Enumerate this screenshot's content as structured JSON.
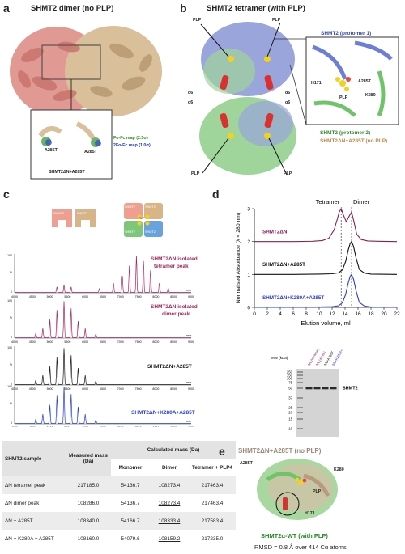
{
  "panels": {
    "a": {
      "letter": "a",
      "title": "SHMT2 dimer (no PLP)",
      "map_green": "Fo-Fc map (2.5σ)",
      "map_blue": "2Fo-Fc map (1.0σ)",
      "residue_left": "A285T",
      "residue_right": "A285T",
      "construct": "SHMT2ΔN+A285T"
    },
    "b": {
      "letter": "b",
      "title": "SHMT2 tetramer (with PLP)",
      "plp_labels": [
        "PLP",
        "PLP",
        "PLP",
        "PLP"
      ],
      "alpha_labels": [
        "α6",
        "α6",
        "α6",
        "α6"
      ],
      "protomer1": "SHMT2 (protomer 1)",
      "protomer2": "SHMT2 (protomer 2)",
      "overlay": "SHMT2ΔN+A285T (no PLP)",
      "inset": {
        "h171": "H171",
        "plp": "PLP",
        "a285t": "A285T",
        "k280": "K280"
      }
    },
    "c": {
      "letter": "c",
      "cartoon_dimer": [
        "SHMT2",
        "SHMT2"
      ],
      "cartoon_tetramer": [
        "SHMT2",
        "SHMT2",
        "SHMT2",
        "SHMT2"
      ],
      "cartoon_plp": "PLP",
      "spectra": [
        {
          "label_line1": "SHMT2ΔN isolated",
          "label_line2": "tetramer peak",
          "color": "#a3285e",
          "type": "tetramer"
        },
        {
          "label_line1": "SHMT2ΔN isolated",
          "label_line2": "dimer peak",
          "color": "#a3285e",
          "type": "dimer"
        },
        {
          "label_line1": "SHMT2ΔN+A285T",
          "label_line2": "",
          "color": "#1a1a1a",
          "type": "dimer"
        },
        {
          "label_line1": "SHMT2ΔN+K280A+A285T",
          "label_line2": "",
          "color": "#2a3fd0",
          "type": "dimer"
        }
      ],
      "x_ticks": [
        "4000",
        "4500",
        "5000",
        "5500",
        "6000",
        "6500",
        "7000",
        "7500",
        "8000",
        "8500",
        "9000"
      ],
      "x_unit": "m/z",
      "y_ticks": [
        "0",
        "%",
        "100"
      ]
    },
    "d": {
      "letter": "d",
      "peak_labels": {
        "tetramer": "Tetramer",
        "dimer": "Dimer"
      },
      "chart_data": {
        "type": "line",
        "xlabel": "Elution volume, ml",
        "ylabel": "Normalised Absorbance (λ = 280 nm)",
        "x_ticks": [
          0,
          2,
          4,
          6,
          8,
          10,
          12,
          14,
          16,
          18,
          20,
          22
        ],
        "y_ticks": [
          0,
          1,
          2,
          3
        ],
        "xlim": [
          0,
          22
        ],
        "ylim": [
          0,
          3
        ],
        "dashed_lines_x": [
          13.4,
          15.0
        ],
        "series": [
          {
            "name": "SHMT2ΔN",
            "color": "#8a2050",
            "offset": 2,
            "x": [
              0,
              6,
              9,
              10.5,
              11.5,
              12.3,
              12.8,
              13.1,
              13.4,
              13.8,
              14.2,
              14.6,
              15.0,
              15.4,
              15.8,
              16.5,
              17.5,
              19,
              22
            ],
            "y": [
              0,
              0,
              0.01,
              0.03,
              0.1,
              0.35,
              0.68,
              0.9,
              1.0,
              0.78,
              0.6,
              0.76,
              0.9,
              0.58,
              0.22,
              0.06,
              0.02,
              0.01,
              0
            ]
          },
          {
            "name": "SHMT2ΔN+A285T",
            "color": "#111111",
            "offset": 1,
            "x": [
              0,
              6,
              10,
              12,
              13,
              13.6,
              14.1,
              14.5,
              14.8,
              15.0,
              15.3,
              15.7,
              16.2,
              17,
              18,
              22
            ],
            "y": [
              0,
              0,
              0.01,
              0.02,
              0.05,
              0.14,
              0.4,
              0.75,
              0.95,
              1.0,
              0.86,
              0.5,
              0.15,
              0.04,
              0.01,
              0
            ]
          },
          {
            "name": "SHMT2ΔN+K280A+A285T",
            "color": "#2a3ad8",
            "offset": 0,
            "x": [
              0,
              6,
              10,
              12,
              13,
              13.6,
              14.1,
              14.5,
              14.8,
              15.0,
              15.3,
              15.7,
              16.2,
              17,
              18,
              22
            ],
            "y": [
              0,
              0,
              0.01,
              0.02,
              0.05,
              0.14,
              0.4,
              0.75,
              0.95,
              1.0,
              0.86,
              0.5,
              0.15,
              0.04,
              0.01,
              0
            ]
          }
        ]
      },
      "gel": {
        "mw_header": "MW (kDa)",
        "markers": [
          "250",
          "150",
          "100",
          "75",
          "50",
          "37",
          "25",
          "20",
          "15",
          "10"
        ],
        "lanes": [
          "ΔN (tetramer)",
          "ΔN (dimer)",
          "ΔN+A285T",
          "ΔN+K280A+A285T"
        ],
        "lane_colors": [
          "#8a2050",
          "#8a2050",
          "#111111",
          "#2a3ad8"
        ],
        "band_label": "SHMT2"
      }
    },
    "e": {
      "letter": "e",
      "title": "SHMT2ΔN+A285T (no PLP)",
      "labels": {
        "a285t": "A285T",
        "k280": "K280",
        "plp": "PLP",
        "h171": "H171"
      },
      "subtitle": "SHMT2α-WT (with PLP)",
      "rmsd": "RMSD = 0.8 Å over 414 Cα atoms"
    }
  },
  "table": {
    "headers": {
      "sample": "SHMT2 sample",
      "measured": "Measured mass (Da)",
      "calculated": "Calculated mass (Da)"
    },
    "subheaders": [
      "Monomer",
      "Dimer",
      "Tetramer + PLP4"
    ],
    "rows": [
      {
        "sample": "ΔN tetramer peak",
        "measured": "217185.0",
        "monomer": "54136.7",
        "dimer": "108273.4",
        "tetramer": "217463.4"
      },
      {
        "sample": "ΔN dimer peak",
        "measured": "108286.0",
        "monomer": "54136.7",
        "dimer": "108273.4",
        "tetramer": "217463.4"
      },
      {
        "sample": "ΔN + A285T",
        "measured": "108340.0",
        "monomer": "54166.7",
        "dimer": "108333.4",
        "tetramer": "217583.4"
      },
      {
        "sample": "ΔN + K280A + A285T",
        "measured": "108160.0",
        "monomer": "54079.6",
        "dimer": "108159.2",
        "tetramer": "217235.0"
      }
    ]
  }
}
